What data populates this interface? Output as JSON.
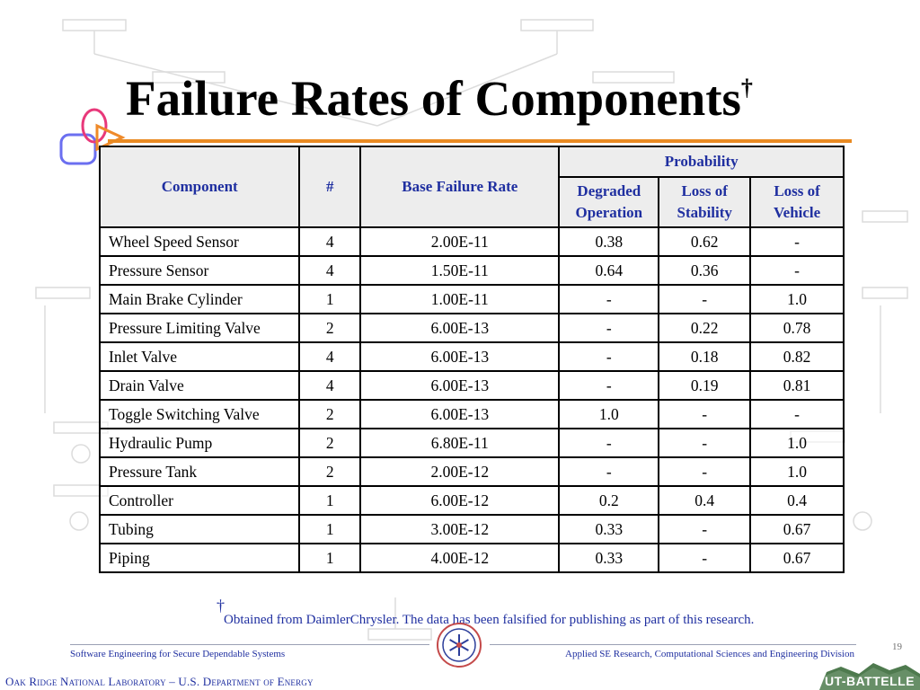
{
  "slide": {
    "title": "Failure Rates of Components",
    "title_mark": "†",
    "page_number": "19"
  },
  "table": {
    "headers": {
      "component": "Component",
      "count": "#",
      "base_rate": "Base Failure Rate",
      "probability": "Probability",
      "degraded": "Degraded Operation",
      "loss_stability": "Loss of Stability",
      "loss_vehicle": "Loss of Vehicle"
    },
    "rows": [
      [
        "Wheel Speed Sensor",
        "4",
        "2.00E-11",
        "0.38",
        "0.62",
        "-"
      ],
      [
        "Pressure Sensor",
        "4",
        "1.50E-11",
        "0.64",
        "0.36",
        "-"
      ],
      [
        "Main Brake Cylinder",
        "1",
        "1.00E-11",
        "-",
        "-",
        "1.0"
      ],
      [
        "Pressure Limiting Valve",
        "2",
        "6.00E-13",
        "-",
        "0.22",
        "0.78"
      ],
      [
        "Inlet Valve",
        "4",
        "6.00E-13",
        "-",
        "0.18",
        "0.82"
      ],
      [
        "Drain Valve",
        "4",
        "6.00E-13",
        "-",
        "0.19",
        "0.81"
      ],
      [
        "Toggle Switching Valve",
        "2",
        "6.00E-13",
        "1.0",
        "-",
        "-"
      ],
      [
        "Hydraulic Pump",
        "2",
        "6.80E-11",
        "-",
        "-",
        "1.0"
      ],
      [
        "Pressure Tank",
        "2",
        "2.00E-12",
        "-",
        "-",
        "1.0"
      ],
      [
        "Controller",
        "1",
        "6.00E-12",
        "0.2",
        "0.4",
        "0.4"
      ],
      [
        "Tubing",
        "1",
        "3.00E-12",
        "0.33",
        "-",
        "0.67"
      ],
      [
        "Piping",
        "1",
        "4.00E-12",
        "0.33",
        "-",
        "0.67"
      ]
    ]
  },
  "footnote": {
    "mark": "†",
    "text": "Obtained from DaimlerChrysler. The data has been falsified for publishing as part of this research."
  },
  "footer": {
    "left": "Software Engineering for Secure Dependable Systems",
    "right": "Applied SE Research, Computational Sciences and Engineering Division",
    "organization": "Oak Ridge National Laboratory – U.S. Department of Energy",
    "logo_text": "UT-BATTELLE"
  },
  "colors": {
    "accent_orange": "#e98a22",
    "text_blue": "#1f2fa0",
    "header_fill": "#ededed",
    "logo_green": "#4e7a4e"
  }
}
